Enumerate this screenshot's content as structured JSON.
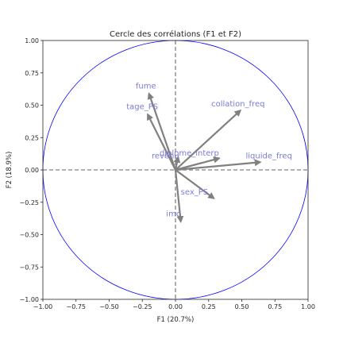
{
  "chart_data": {
    "type": "scatter",
    "title": "Cercle des corrélations (F1 et F2)",
    "xlabel": "F1 (20.7%)",
    "ylabel": "F2 (18.9%)",
    "xlim": [
      -1.0,
      1.0
    ],
    "ylim": [
      -1.0,
      1.0
    ],
    "x_ticks": [
      "−1.00",
      "−0.75",
      "−0.50",
      "−0.25",
      "0.00",
      "0.25",
      "0.50",
      "0.75",
      "1.00"
    ],
    "y_ticks": [
      "−1.00",
      "−0.75",
      "−0.50",
      "−0.25",
      "0.00",
      "0.25",
      "0.50",
      "0.75",
      "1.00"
    ],
    "grid": false,
    "circle_color": "#0000ff",
    "arrow_color": "#808080",
    "label_color": "#7b7bd6",
    "variables": [
      {
        "name": "fume",
        "x": -0.2,
        "y": 0.59
      },
      {
        "name": "tage_PS",
        "x": -0.21,
        "y": 0.43
      },
      {
        "name": "collation_freq",
        "x": 0.49,
        "y": 0.46
      },
      {
        "name": "liquide_freq",
        "x": 0.64,
        "y": 0.06
      },
      {
        "name": "diplome_interp",
        "x": 0.33,
        "y": 0.09
      },
      {
        "name": "revenu",
        "x": 0.02,
        "y": 0.1
      },
      {
        "name": "sex_PS",
        "x": 0.29,
        "y": -0.22
      },
      {
        "name": "imc",
        "x": 0.04,
        "y": -0.4
      }
    ],
    "label_positions": [
      {
        "name": "fume",
        "x": -0.3,
        "y": 0.63
      },
      {
        "name": "tage_PS",
        "x": -0.37,
        "y": 0.47
      },
      {
        "name": "collation_freq",
        "x": 0.27,
        "y": 0.49
      },
      {
        "name": "liquide_freq",
        "x": 0.53,
        "y": 0.09
      },
      {
        "name": "diplome_interp",
        "x": -0.12,
        "y": 0.11
      },
      {
        "name": "revenu",
        "x": -0.18,
        "y": 0.09
      },
      {
        "name": "sex_PS",
        "x": 0.04,
        "y": -0.19
      },
      {
        "name": "imc",
        "x": -0.07,
        "y": -0.36
      }
    ]
  }
}
